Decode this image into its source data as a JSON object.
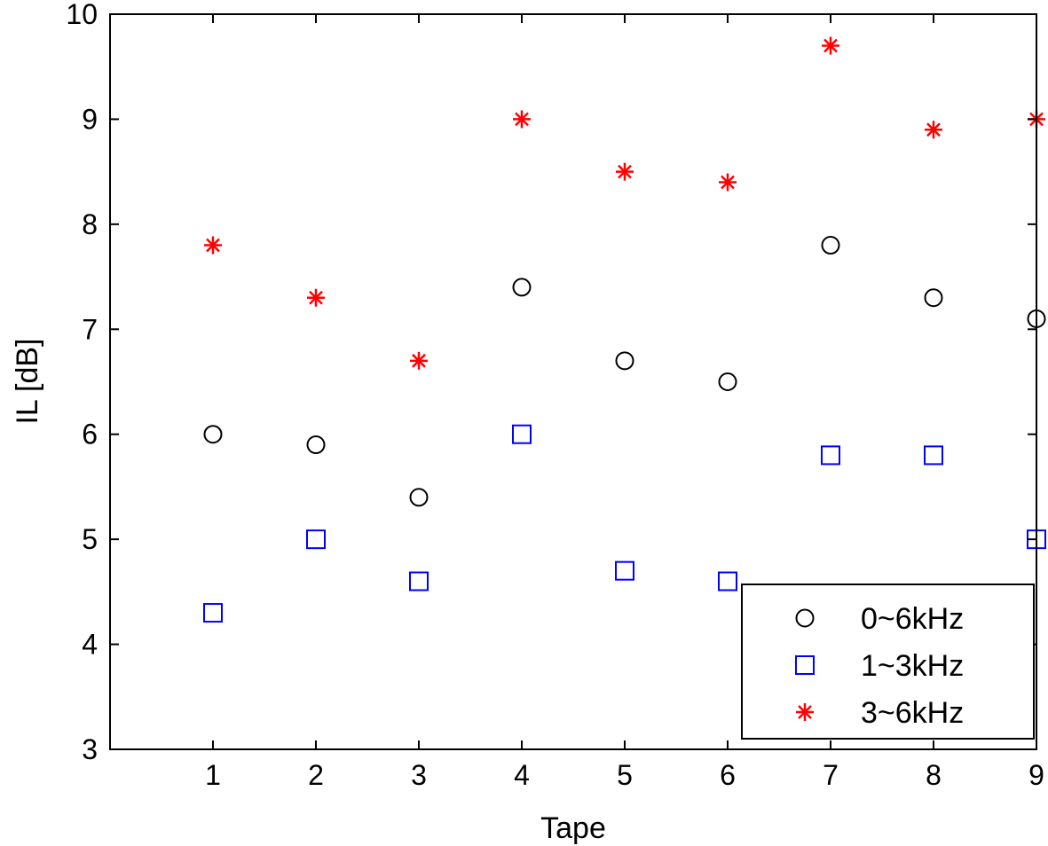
{
  "chart_data": {
    "type": "scatter",
    "title": "",
    "xlabel": "Tape",
    "ylabel": "IL [dB]",
    "xlim": [
      0,
      9
    ],
    "ylim": [
      3,
      10
    ],
    "x": [
      1,
      2,
      3,
      4,
      5,
      6,
      7,
      8,
      9
    ],
    "xticks": [
      "1",
      "2",
      "3",
      "4",
      "5",
      "6",
      "7",
      "8",
      "9"
    ],
    "yticks": [
      "3",
      "4",
      "5",
      "6",
      "7",
      "8",
      "9",
      "10"
    ],
    "grid": false,
    "legend_position": "bottom-right",
    "series": [
      {
        "name": "0~6kHz",
        "marker": "circle",
        "color": "#000000",
        "values": [
          6.0,
          5.9,
          5.4,
          7.4,
          6.7,
          6.5,
          7.8,
          7.3,
          7.1
        ]
      },
      {
        "name": "1~3kHz",
        "marker": "square",
        "color": "#0000ff",
        "values": [
          4.3,
          5.0,
          4.6,
          6.0,
          4.7,
          4.6,
          5.8,
          5.8,
          5.0
        ]
      },
      {
        "name": "3~6kHz",
        "marker": "star",
        "color": "#ff0000",
        "values": [
          7.8,
          7.3,
          6.7,
          9.0,
          8.5,
          8.4,
          9.7,
          8.9,
          9.0
        ]
      }
    ]
  }
}
